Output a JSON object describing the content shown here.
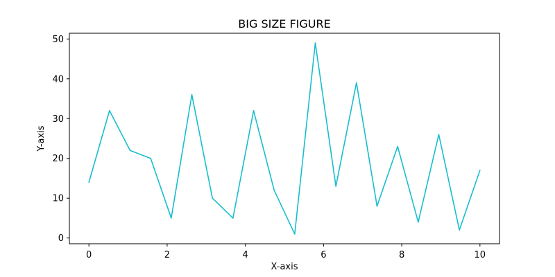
{
  "chart_data": {
    "type": "line",
    "title": "BIG SIZE FIGURE",
    "xlabel": "X-axis",
    "ylabel": "Y-axis",
    "xlim": [
      -0.5,
      10.5
    ],
    "ylim": [
      -1.45,
      51.45
    ],
    "x_ticks": [
      "0",
      "2",
      "4",
      "6",
      "8",
      "10"
    ],
    "y_ticks": [
      "0",
      "10",
      "20",
      "30",
      "40",
      "50"
    ],
    "grid": false,
    "legend": false,
    "series": [
      {
        "color": "#17becf",
        "x": [
          0,
          0.526,
          1.053,
          1.579,
          2.105,
          2.632,
          3.158,
          3.684,
          4.211,
          4.737,
          5.263,
          5.789,
          6.316,
          6.842,
          7.368,
          7.895,
          8.421,
          8.947,
          9.474,
          10
        ],
        "y": [
          14,
          32,
          22,
          20,
          5,
          36,
          10,
          5,
          32,
          12,
          1,
          49,
          13,
          39,
          8,
          23,
          4,
          26,
          2,
          17
        ]
      }
    ]
  }
}
